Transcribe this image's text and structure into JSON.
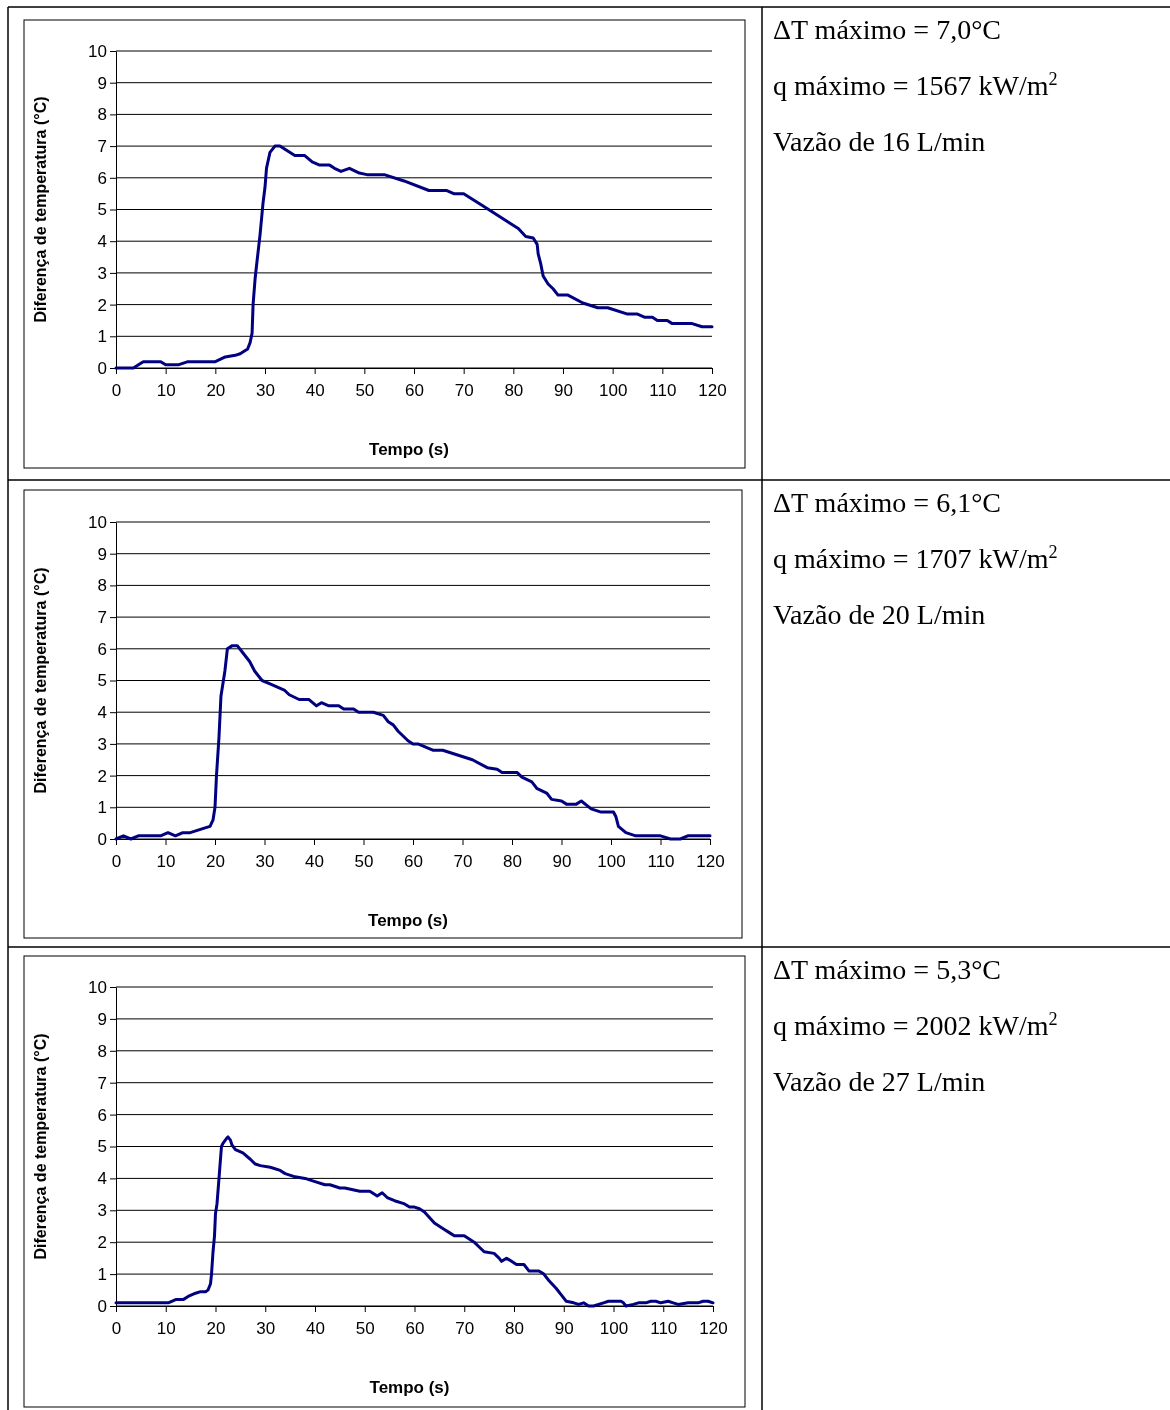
{
  "chart_data": [
    {
      "type": "line",
      "xlabel": "Tempo (s)",
      "ylabel": "Diferença de temperatura (°C)",
      "color": "#000080",
      "grid": "y",
      "xlim": [
        0,
        120
      ],
      "xticks": [
        0,
        10,
        20,
        30,
        40,
        50,
        60,
        70,
        80,
        90,
        100,
        110,
        120
      ],
      "ylim": [
        0,
        10
      ],
      "yticks": [
        0,
        1,
        2,
        3,
        4,
        5,
        6,
        7,
        8,
        9,
        10
      ],
      "x": [
        0,
        3.5,
        5,
        5.5,
        9,
        10,
        12.5,
        14.5,
        20,
        22,
        24,
        25,
        26.5,
        27,
        27.4,
        27.6,
        28,
        28.2,
        29,
        29.6,
        30,
        30.3,
        31,
        32,
        33,
        36,
        38,
        39.5,
        41,
        43,
        44,
        45.3,
        47,
        49,
        50.5,
        54,
        58,
        63,
        66.5,
        68,
        70,
        74,
        78,
        81,
        82.5,
        84,
        84.8,
        85,
        85.5,
        86,
        87,
        88,
        89,
        91,
        94,
        97,
        99,
        103,
        105,
        106.5,
        108,
        109,
        111,
        112,
        116,
        118,
        120
      ],
      "values": [
        0,
        0,
        0.15,
        0.2,
        0.2,
        0.1,
        0.1,
        0.2,
        0.2,
        0.35,
        0.4,
        0.45,
        0.6,
        0.8,
        1.1,
        2,
        2.8,
        3.1,
        4.2,
        5.2,
        5.7,
        6.3,
        6.8,
        7.0,
        7.0,
        6.7,
        6.7,
        6.5,
        6.4,
        6.4,
        6.3,
        6.2,
        6.3,
        6.15,
        6.1,
        6.1,
        5.9,
        5.6,
        5.6,
        5.5,
        5.5,
        5.1,
        4.7,
        4.4,
        4.15,
        4.1,
        3.9,
        3.6,
        3.3,
        2.9,
        2.65,
        2.5,
        2.3,
        2.3,
        2.05,
        1.9,
        1.9,
        1.7,
        1.7,
        1.6,
        1.6,
        1.5,
        1.5,
        1.4,
        1.4,
        1.3,
        1.3
      ]
    },
    {
      "type": "other",
      "annotations": [
        "ΔT máximo = 7,0°C",
        "q máximo = 1567 kW/m$^{2}$",
        "Vazão de 16 L/min"
      ]
    },
    {
      "type": "line",
      "xlabel": "Tempo (s)",
      "ylabel": "Diferença de temperatura (°C)",
      "color": "#000080",
      "grid": "y",
      "xlim": [
        0,
        120
      ],
      "xticks": [
        0,
        10,
        20,
        30,
        40,
        50,
        60,
        70,
        80,
        90,
        100,
        110,
        120
      ],
      "ylim": [
        0,
        10
      ],
      "yticks": [
        0,
        1,
        2,
        3,
        4,
        5,
        6,
        7,
        8,
        9,
        10
      ],
      "x": [
        0,
        1.5,
        3,
        4.5,
        9,
        10.5,
        12,
        13.5,
        15,
        18,
        19,
        19.6,
        20,
        20.3,
        20.8,
        21.2,
        22,
        22.5,
        23.5,
        24.5,
        25.5,
        27,
        28,
        29.5,
        31,
        34,
        35,
        37,
        39,
        40.5,
        41.5,
        43,
        45,
        46,
        48,
        49,
        52,
        54,
        55,
        56,
        57,
        59,
        60,
        61,
        64,
        66,
        72,
        75,
        77,
        78,
        81,
        82,
        84,
        85,
        87,
        88,
        90,
        91,
        93,
        94,
        96,
        98,
        100.5,
        101,
        101.5,
        103,
        105,
        110,
        111,
        112,
        114,
        115.5,
        120
      ],
      "values": [
        0,
        0.1,
        0,
        0.1,
        0.1,
        0.2,
        0.1,
        0.2,
        0.2,
        0.35,
        0.4,
        0.6,
        1.0,
        2.0,
        3.2,
        4.5,
        5.3,
        6.0,
        6.1,
        6.1,
        5.9,
        5.6,
        5.3,
        5.0,
        4.9,
        4.7,
        4.55,
        4.4,
        4.4,
        4.2,
        4.3,
        4.2,
        4.2,
        4.1,
        4.1,
        4.0,
        4.0,
        3.9,
        3.7,
        3.6,
        3.4,
        3.1,
        3.0,
        3.0,
        2.8,
        2.8,
        2.5,
        2.25,
        2.2,
        2.1,
        2.1,
        1.95,
        1.8,
        1.6,
        1.45,
        1.25,
        1.2,
        1.1,
        1.1,
        1.2,
        0.95,
        0.85,
        0.85,
        0.7,
        0.4,
        0.2,
        0.1,
        0.1,
        0.05,
        0,
        0,
        0.1,
        0.1
      ]
    },
    {
      "type": "other",
      "annotations": [
        "ΔT máximo = 6,1°C",
        "q máximo = 1707 kW/m$^{2}$",
        "Vazão de 20 L/min"
      ]
    },
    {
      "type": "line",
      "xlabel": "Tempo (s)",
      "ylabel": "Diferença de temperatura (°C)",
      "color": "#000080",
      "grid": "y",
      "xlim": [
        0,
        120
      ],
      "xticks": [
        0,
        10,
        20,
        30,
        40,
        50,
        60,
        70,
        80,
        90,
        100,
        110,
        120
      ],
      "ylim": [
        0,
        10
      ],
      "yticks": [
        0,
        1,
        2,
        3,
        4,
        5,
        6,
        7,
        8,
        9,
        10
      ],
      "x": [
        0,
        10.5,
        12,
        13.5,
        14.5,
        16,
        17,
        18,
        18.5,
        19,
        19.2,
        19.5,
        19.8,
        20,
        20.3,
        20.8,
        21.2,
        21.5,
        22.2,
        22.5,
        23,
        23.3,
        24,
        25.5,
        27,
        28,
        29,
        31,
        33,
        34,
        36,
        38,
        40,
        42,
        43,
        45,
        46,
        49,
        51,
        51.5,
        52.5,
        53.5,
        54.5,
        56,
        58,
        59,
        60,
        61,
        62,
        64,
        66,
        67,
        68,
        70,
        71,
        72,
        73,
        74,
        76,
        77,
        77.5,
        78.5,
        79.5,
        80.5,
        82,
        83,
        85,
        86,
        87,
        88.5,
        89.5,
        90.5,
        92,
        93,
        94,
        95,
        96,
        98,
        99,
        101.5,
        102,
        102.5,
        104,
        105,
        106.5,
        107.5,
        108.5,
        109.5,
        111,
        112,
        113,
        115,
        117,
        118,
        119,
        120
      ],
      "values": [
        0.1,
        0.1,
        0.2,
        0.2,
        0.3,
        0.4,
        0.45,
        0.45,
        0.5,
        0.7,
        1.0,
        1.7,
        2.2,
        2.9,
        3.2,
        4.2,
        5.0,
        5.1,
        5.25,
        5.3,
        5.2,
        5.05,
        4.9,
        4.8,
        4.6,
        4.45,
        4.4,
        4.35,
        4.25,
        4.15,
        4.05,
        4.0,
        3.9,
        3.8,
        3.8,
        3.7,
        3.7,
        3.6,
        3.6,
        3.55,
        3.45,
        3.55,
        3.4,
        3.3,
        3.2,
        3.1,
        3.1,
        3.05,
        2.95,
        2.6,
        2.4,
        2.3,
        2.2,
        2.2,
        2.1,
        2.0,
        1.85,
        1.7,
        1.65,
        1.5,
        1.4,
        1.5,
        1.4,
        1.3,
        1.3,
        1.1,
        1.1,
        1.0,
        0.8,
        0.55,
        0.35,
        0.15,
        0.1,
        0.05,
        0.1,
        0,
        0,
        0.1,
        0.15,
        0.15,
        0.1,
        0,
        0.05,
        0.1,
        0.1,
        0.15,
        0.15,
        0.1,
        0.15,
        0.1,
        0.05,
        0.1,
        0.1,
        0.15,
        0.15,
        0.1
      ]
    },
    {
      "type": "other",
      "annotations": [
        "ΔT máximo = 5,3°C",
        "q máximo = 2002 kW/m$^{2}$",
        "Vazão de 27 L/min"
      ]
    }
  ]
}
